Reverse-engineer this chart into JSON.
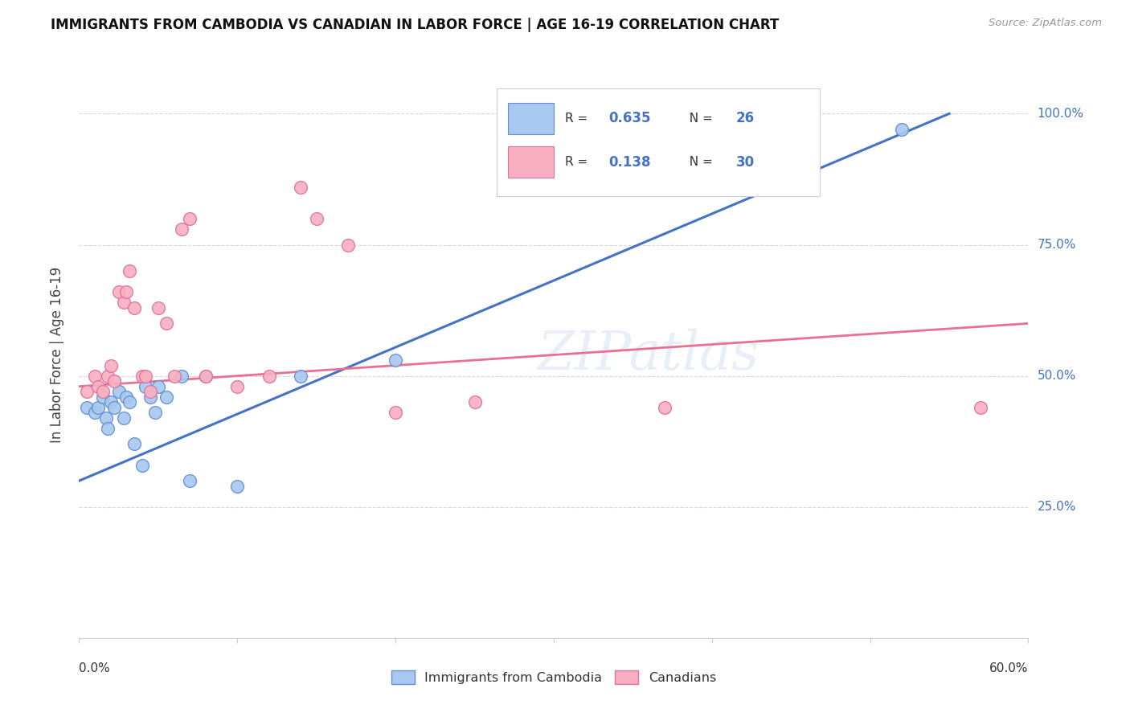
{
  "title": "IMMIGRANTS FROM CAMBODIA VS CANADIAN IN LABOR FORCE | AGE 16-19 CORRELATION CHART",
  "source": "Source: ZipAtlas.com",
  "ylabel": "In Labor Force | Age 16-19",
  "ytick_labels": [
    "100.0%",
    "75.0%",
    "50.0%",
    "25.0%"
  ],
  "ytick_values": [
    1.0,
    0.75,
    0.5,
    0.25
  ],
  "xlim": [
    0.0,
    0.6
  ],
  "ylim": [
    0.0,
    1.08
  ],
  "color_cambodia_fill": "#a8c8f0",
  "color_cambodia_edge": "#6090d0",
  "color_canada_fill": "#f8b0c0",
  "color_canada_edge": "#e070a0",
  "color_line_cambodia": "#4472c4",
  "color_line_canada": "#e87090",
  "watermark_text": "ZIPatlas",
  "background_color": "#ffffff",
  "grid_color": "#d8d8d8",
  "cambodia_x": [
    0.005,
    0.01,
    0.012,
    0.015,
    0.017,
    0.018,
    0.02,
    0.022,
    0.025,
    0.028,
    0.03,
    0.032,
    0.035,
    0.04,
    0.042,
    0.045,
    0.048,
    0.05,
    0.055,
    0.065,
    0.07,
    0.08,
    0.1,
    0.14,
    0.2,
    0.52
  ],
  "cambodia_y": [
    0.44,
    0.43,
    0.44,
    0.46,
    0.42,
    0.4,
    0.45,
    0.44,
    0.47,
    0.42,
    0.46,
    0.45,
    0.37,
    0.33,
    0.48,
    0.46,
    0.43,
    0.48,
    0.46,
    0.5,
    0.3,
    0.5,
    0.29,
    0.5,
    0.53,
    0.97
  ],
  "canada_x": [
    0.005,
    0.01,
    0.012,
    0.015,
    0.018,
    0.02,
    0.022,
    0.025,
    0.028,
    0.03,
    0.032,
    0.035,
    0.04,
    0.042,
    0.045,
    0.05,
    0.055,
    0.06,
    0.065,
    0.07,
    0.08,
    0.1,
    0.12,
    0.14,
    0.15,
    0.17,
    0.2,
    0.25,
    0.37,
    0.57
  ],
  "canada_y": [
    0.47,
    0.5,
    0.48,
    0.47,
    0.5,
    0.52,
    0.49,
    0.66,
    0.64,
    0.66,
    0.7,
    0.63,
    0.5,
    0.5,
    0.47,
    0.63,
    0.6,
    0.5,
    0.78,
    0.8,
    0.5,
    0.48,
    0.5,
    0.86,
    0.8,
    0.75,
    0.43,
    0.45,
    0.44,
    0.44
  ],
  "cam_line_x0": 0.0,
  "cam_line_x1": 0.55,
  "cam_line_y0": 0.3,
  "cam_line_y1": 1.0,
  "can_line_x0": 0.0,
  "can_line_x1": 0.6,
  "can_line_y0": 0.48,
  "can_line_y1": 0.6
}
